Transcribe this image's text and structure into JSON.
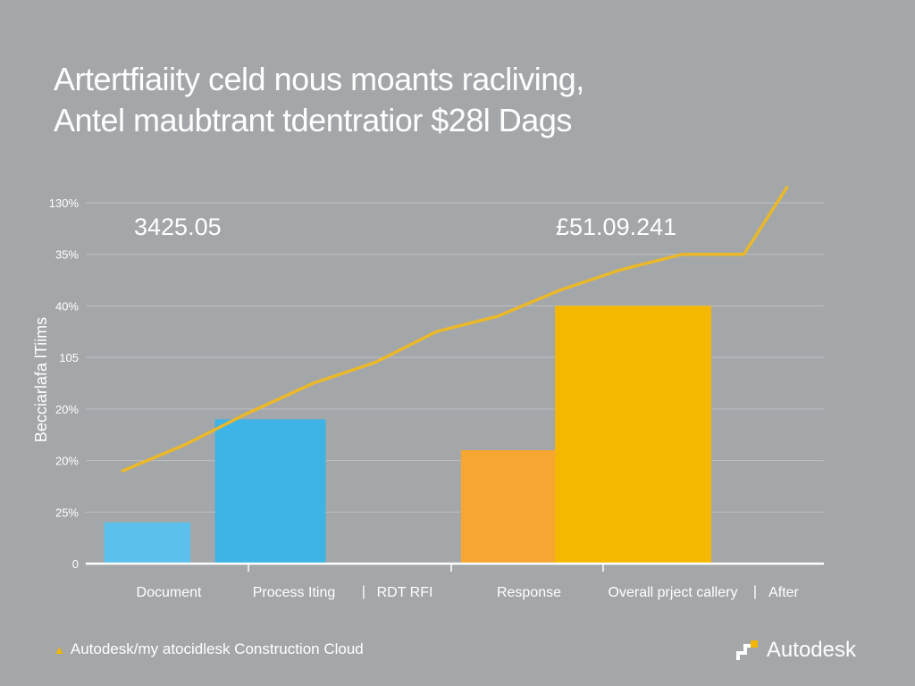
{
  "title": {
    "line1": "Artertfiaiity celd nous moants racliving,",
    "line2": "Antel maubtrant tdentratior $28l Dags"
  },
  "chart_data": {
    "type": "bar",
    "ylabel": "Becciarlafa lTiims",
    "ylim": [
      0,
      7
    ],
    "y_tick_labels": [
      "0",
      "25%",
      "20%",
      "20%",
      "105",
      "40%",
      "35%",
      "130%"
    ],
    "categories": [
      "Document",
      "Process Iting",
      "RDT RFI",
      "Response",
      "Overall prject callery",
      "After"
    ],
    "category_separators": [
      "|",
      "|"
    ],
    "bars": [
      {
        "category": "Document",
        "value": 0.8,
        "color": "#5bc1ec"
      },
      {
        "category": "Process Iting",
        "value": 2.8,
        "color": "#3db3e6"
      },
      {
        "category": "Response",
        "value": 2.2,
        "color": "#f5a732"
      },
      {
        "category": "Overall prject callery",
        "value": 5.0,
        "color": "#f5b700"
      }
    ],
    "line_series": {
      "name": "trend",
      "color": "#eab829",
      "x": [
        0.3,
        0.8,
        1.3,
        1.85,
        2.35,
        2.85,
        3.35,
        3.85,
        4.35,
        4.85,
        5.35,
        5.7
      ],
      "values": [
        1.8,
        2.3,
        2.9,
        3.5,
        3.9,
        4.5,
        4.8,
        5.3,
        5.7,
        6.0,
        6.0,
        7.3
      ]
    },
    "annotations": [
      "3425.05",
      "£51.09.241"
    ]
  },
  "footer": {
    "source": "Autodesk/my atocidlesk Construction Cloud",
    "brand": "Autodesk"
  },
  "colors": {
    "background": "#a3a7aa",
    "axis": "#ffffff",
    "grid": "#bcc0c3",
    "accent": "#f2b600"
  }
}
